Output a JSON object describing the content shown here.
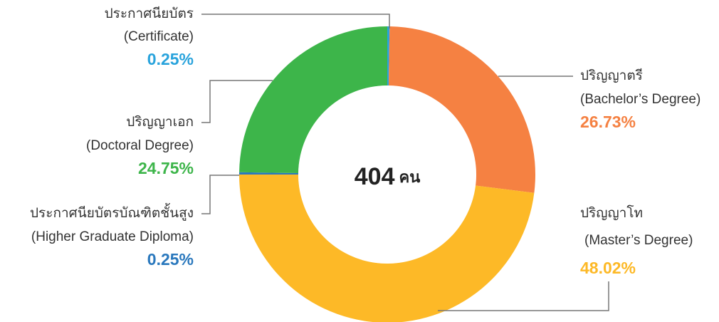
{
  "chart_data": {
    "type": "donut",
    "categories": [
      "ประกาศนียบัตร",
      "ปริญญาตรี",
      "ปริญญาโท",
      "ประกาศนียบัตรบัณฑิตชั้นสูง",
      "ปริญญาเอก"
    ],
    "categories_en": [
      "(Certificate)",
      "(Bachelor’s Degree)",
      "(Master’s Degree)",
      "(Higher Graduate Diploma)",
      "(Doctoral Degree)"
    ],
    "values": [
      0.25,
      26.73,
      48.02,
      0.25,
      24.75
    ],
    "value_labels": [
      "0.25%",
      "26.73%",
      "48.02%",
      "0.25%",
      "24.75%"
    ],
    "colors": [
      "#29a3dc",
      "#f58142",
      "#fdb927",
      "#2a78bd",
      "#3db54a"
    ],
    "total": 404,
    "total_unit": "คน"
  }
}
